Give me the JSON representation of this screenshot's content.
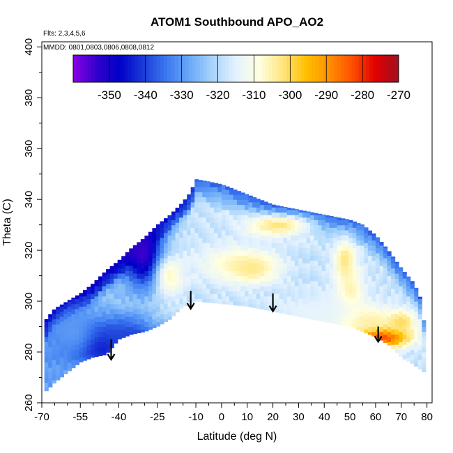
{
  "chart_data": {
    "type": "heatmap",
    "title": "ATOM1 Southbound APO_AO2",
    "annotations": [
      "Flts: 2,3,4,5,6",
      "MMDD: 0801,0803,0806,0808,0812"
    ],
    "xlabel": "Latitude (deg N)",
    "ylabel": "Theta (C)",
    "xlim": [
      -70,
      82
    ],
    "ylim": [
      260,
      402
    ],
    "x_ticks": [
      -70,
      -55,
      -40,
      -25,
      -10,
      0,
      10,
      20,
      30,
      40,
      50,
      60,
      70,
      80
    ],
    "x_tick_labels": [
      "-70",
      "-55",
      "-40",
      "-25",
      "-10",
      "0",
      "10",
      "20",
      "30",
      "40",
      "50",
      "60",
      "70",
      "80"
    ],
    "y_ticks": [
      260,
      280,
      300,
      320,
      340,
      360,
      380,
      400
    ],
    "y_tick_labels": [
      "260",
      "280",
      "300",
      "320",
      "340",
      "360",
      "380",
      "400"
    ],
    "colorbar": {
      "range": [
        -360,
        -270
      ],
      "tick_values": [
        -350,
        -340,
        -330,
        -320,
        -310,
        -300,
        -290,
        -280,
        -270
      ],
      "tick_labels": [
        "-350",
        "-340",
        "-330",
        "-320",
        "-310",
        "-300",
        "-290",
        "-280",
        "-270"
      ],
      "colors": [
        "#8a00e6",
        "#3300cc",
        "#0000c8",
        "#1a3ad8",
        "#3b78f0",
        "#6aa8f8",
        "#a8d4fa",
        "#e4f2ff",
        "#ffffe0",
        "#ffe680",
        "#ffc000",
        "#ff9000",
        "#ff5000",
        "#e00000",
        "#a01020"
      ]
    },
    "upper_boundary": [
      [
        -69,
        292
      ],
      [
        -65,
        297
      ],
      [
        -60,
        300
      ],
      [
        -55,
        303
      ],
      [
        -50,
        307
      ],
      [
        -45,
        312
      ],
      [
        -40,
        316
      ],
      [
        -35,
        321
      ],
      [
        -30,
        325
      ],
      [
        -25,
        330
      ],
      [
        -20,
        334
      ],
      [
        -15,
        339
      ],
      [
        -12,
        343
      ],
      [
        -10,
        348
      ],
      [
        -5,
        347
      ],
      [
        0,
        346
      ],
      [
        5,
        344
      ],
      [
        10,
        342
      ],
      [
        15,
        340
      ],
      [
        20,
        338
      ],
      [
        25,
        337
      ],
      [
        30,
        336
      ],
      [
        35,
        335
      ],
      [
        40,
        334
      ],
      [
        45,
        333
      ],
      [
        50,
        332
      ],
      [
        55,
        330
      ],
      [
        60,
        326
      ],
      [
        65,
        320
      ],
      [
        70,
        313
      ],
      [
        75,
        307
      ],
      [
        78,
        300
      ],
      [
        79,
        290
      ]
    ],
    "lower_boundary": [
      [
        79,
        272
      ],
      [
        75,
        275
      ],
      [
        70,
        278
      ],
      [
        65,
        283
      ],
      [
        60,
        286
      ],
      [
        55,
        288
      ],
      [
        50,
        290
      ],
      [
        40,
        292
      ],
      [
        30,
        294
      ],
      [
        20,
        296
      ],
      [
        10,
        298
      ],
      [
        0,
        299
      ],
      [
        -10,
        300
      ],
      [
        -15,
        298
      ],
      [
        -20,
        293
      ],
      [
        -25,
        290
      ],
      [
        -30,
        288
      ],
      [
        -35,
        287
      ],
      [
        -40,
        285
      ],
      [
        -45,
        279
      ],
      [
        -50,
        278
      ],
      [
        -55,
        276
      ],
      [
        -60,
        272
      ],
      [
        -65,
        268
      ],
      [
        -69,
        264
      ]
    ],
    "field_features": [
      {
        "lat": -48,
        "theta": 283,
        "value": -352,
        "sx": 9,
        "sy": 6
      },
      {
        "lat": -30,
        "theta": 318,
        "value": -355,
        "sx": 6,
        "sy": 9
      },
      {
        "lat": -36,
        "theta": 286,
        "value": -340,
        "sx": 10,
        "sy": 6
      },
      {
        "lat": -58,
        "theta": 288,
        "value": -330,
        "sx": 7,
        "sy": 8
      },
      {
        "lat": -20,
        "theta": 310,
        "value": -307,
        "sx": 4,
        "sy": 6
      },
      {
        "lat": 5,
        "theta": 315,
        "value": -308,
        "sx": 10,
        "sy": 5
      },
      {
        "lat": 22,
        "theta": 330,
        "value": -302,
        "sx": 9,
        "sy": 3
      },
      {
        "lat": 12,
        "theta": 313,
        "value": -303,
        "sx": 7,
        "sy": 4
      },
      {
        "lat": 48,
        "theta": 316,
        "value": -302,
        "sx": 3,
        "sy": 6
      },
      {
        "lat": 50,
        "theta": 303,
        "value": -304,
        "sx": 4,
        "sy": 7
      },
      {
        "lat": 62,
        "theta": 286,
        "value": -278,
        "sx": 8,
        "sy": 3
      },
      {
        "lat": 55,
        "theta": 293,
        "value": -302,
        "sx": 9,
        "sy": 4
      },
      {
        "lat": 70,
        "theta": 292,
        "value": -300,
        "sx": 4,
        "sy": 3
      },
      {
        "lat": 38,
        "theta": 296,
        "value": -314,
        "sx": 12,
        "sy": 5
      }
    ],
    "arrows": [
      {
        "lat": -43,
        "theta_top": 285,
        "theta_tip": 277
      },
      {
        "lat": -12,
        "theta_top": 304,
        "theta_tip": 297
      },
      {
        "lat": 20,
        "theta_top": 303,
        "theta_tip": 296
      },
      {
        "lat": 61,
        "theta_top": 290,
        "theta_tip": 284
      }
    ]
  }
}
